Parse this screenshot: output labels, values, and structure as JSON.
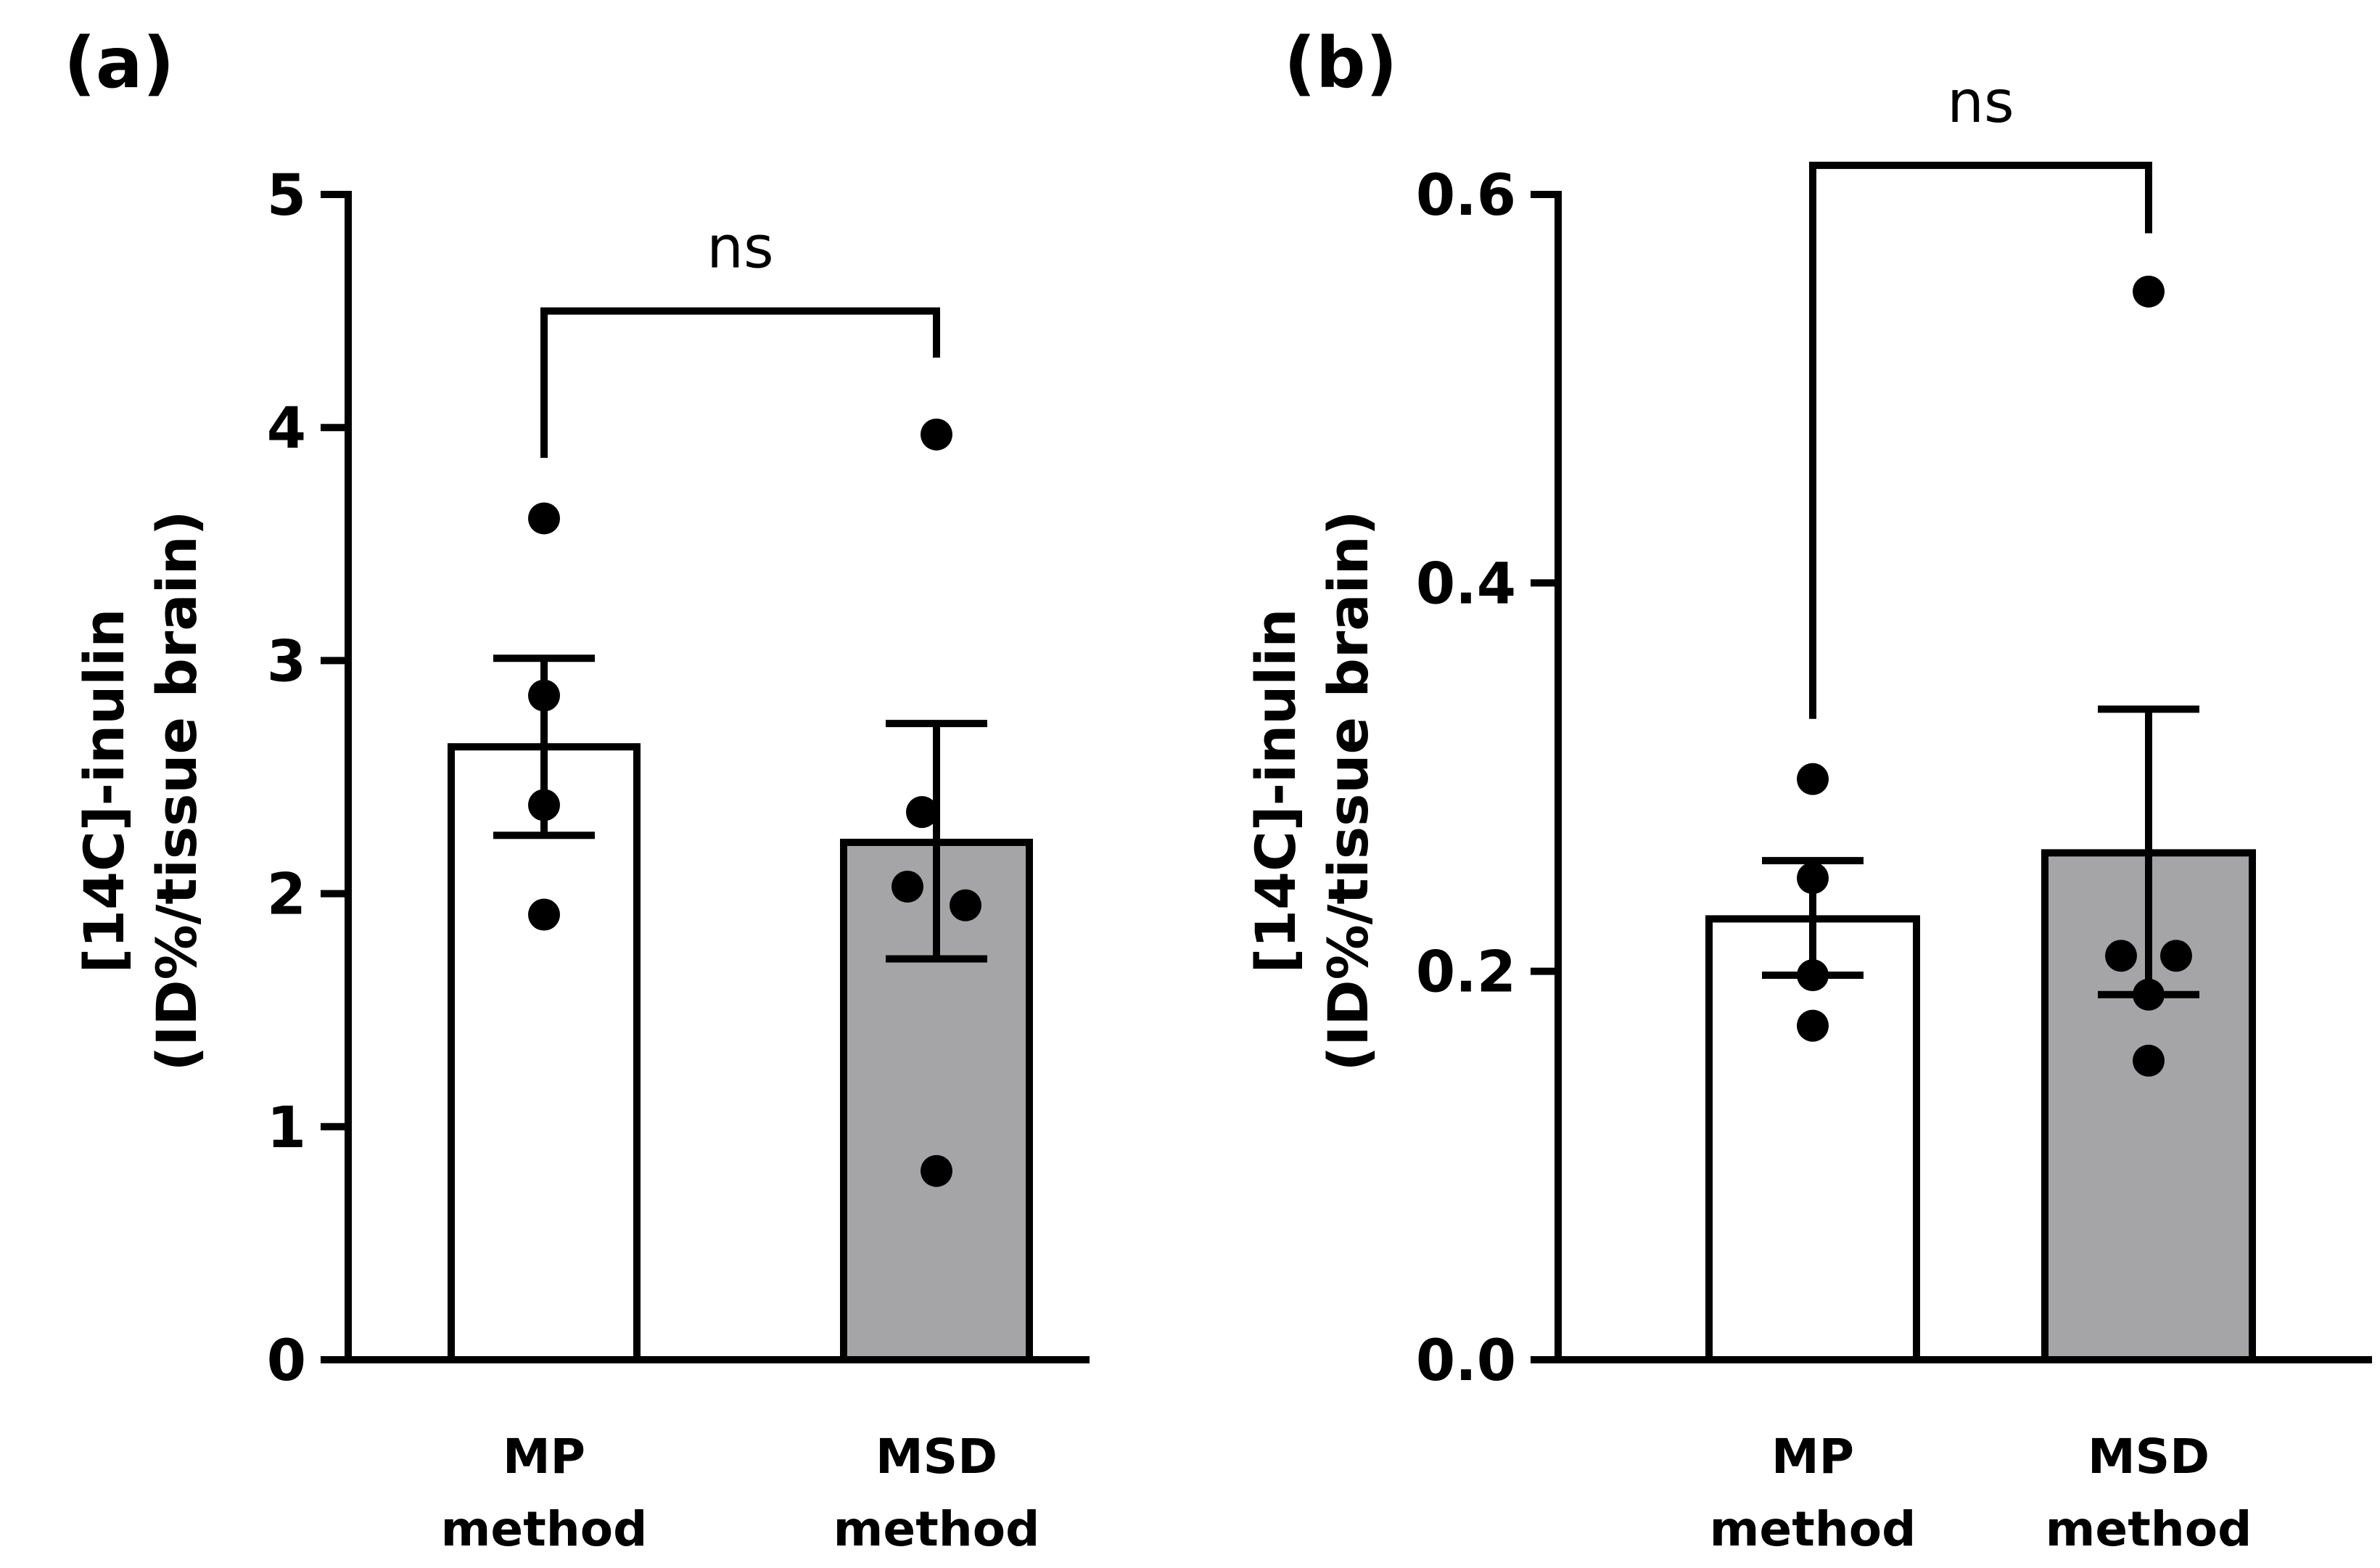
{
  "chart_data": [
    {
      "panel": "(a)",
      "type": "bar",
      "categories": [
        [
          "MP",
          "method"
        ],
        [
          "MSD",
          "method"
        ]
      ],
      "ylabel": [
        "[14C]-inulin",
        "(ID%/tissue brain)"
      ],
      "ylim": [
        0,
        5
      ],
      "yticks": [
        0,
        1,
        2,
        3,
        4,
        5
      ],
      "ytick_labels": [
        "0",
        "1",
        "2",
        "3",
        "4",
        "5"
      ],
      "bars": [
        {
          "category": "MP method",
          "mean": 2.63,
          "sem_low": 2.25,
          "sem_high": 3.01,
          "points": [
            3.61,
            2.85,
            2.38,
            1.91
          ],
          "fill": "#ffffff"
        },
        {
          "category": "MSD method",
          "mean": 2.22,
          "sem_low": 1.72,
          "sem_high": 2.73,
          "points": [
            3.97,
            2.35,
            2.03,
            1.95,
            0.81
          ],
          "fill": "#a5a5a8"
        }
      ],
      "significance": {
        "label": "ns",
        "bracket_y": 4.5,
        "left_drop_to": 3.87,
        "right_drop_to": 4.3
      }
    },
    {
      "panel": "(b)",
      "type": "bar",
      "categories": [
        [
          "MP",
          "method"
        ],
        [
          "MSD",
          "method"
        ]
      ],
      "ylabel": [
        "[14C]-inulin",
        "(ID%/tissue brain)"
      ],
      "ylim": [
        0,
        0.6
      ],
      "yticks": [
        0,
        0.2,
        0.4,
        0.6
      ],
      "ytick_labels": [
        "0.0",
        "0.2",
        "0.4",
        "0.6"
      ],
      "bars": [
        {
          "category": "MP method",
          "mean": 0.227,
          "sem_low": 0.198,
          "sem_high": 0.257,
          "points": [
            0.299,
            0.248,
            0.198,
            0.172
          ],
          "fill": "#ffffff"
        },
        {
          "category": "MSD method",
          "mean": 0.261,
          "sem_low": 0.188,
          "sem_high": 0.335,
          "points": [
            0.55,
            0.208,
            0.208,
            0.188,
            0.154
          ],
          "fill": "#a5a5a8"
        }
      ],
      "significance": {
        "label": "ns",
        "bracket_y": 0.615,
        "left_drop_to": 0.33,
        "right_drop_to": 0.58
      }
    }
  ]
}
